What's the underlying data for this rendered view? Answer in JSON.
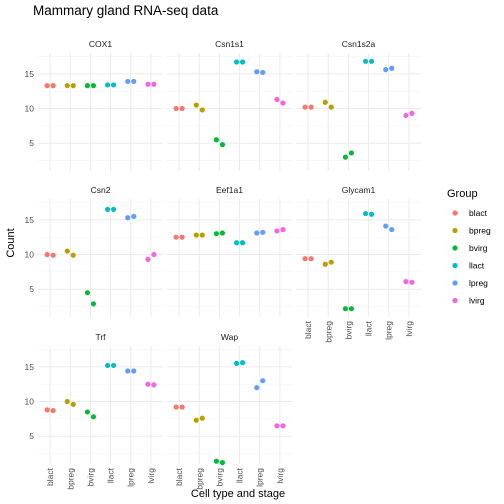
{
  "chart_data": {
    "type": "scatter",
    "title": "Mammary gland RNA-seq data",
    "xlabel": "Cell type and stage",
    "ylabel": "Count",
    "categories": [
      "blact",
      "bpreg",
      "bvirg",
      "llact",
      "lpreg",
      "lvirg"
    ],
    "ylim": [
      1,
      18
    ],
    "yticks": [
      5,
      10,
      15
    ],
    "grid": true,
    "legend_position": "right",
    "legend": {
      "title": "Group",
      "entries": [
        {
          "name": "blact",
          "color": "#F8766D"
        },
        {
          "name": "bpreg",
          "color": "#B79F00"
        },
        {
          "name": "bvirg",
          "color": "#00BA38"
        },
        {
          "name": "llact",
          "color": "#00BFC4"
        },
        {
          "name": "lpreg",
          "color": "#619CFF"
        },
        {
          "name": "lvirg",
          "color": "#F564E3"
        }
      ]
    },
    "panels": [
      {
        "name": "COX1",
        "points": [
          {
            "group": "blact",
            "values": [
              13.3,
              13.3
            ]
          },
          {
            "group": "bpreg",
            "values": [
              13.3,
              13.3
            ]
          },
          {
            "group": "bvirg",
            "values": [
              13.3,
              13.3
            ]
          },
          {
            "group": "llact",
            "values": [
              13.4,
              13.4
            ]
          },
          {
            "group": "lpreg",
            "values": [
              13.9,
              13.9
            ]
          },
          {
            "group": "lvirg",
            "values": [
              13.5,
              13.5
            ]
          }
        ]
      },
      {
        "name": "Csn1s1",
        "points": [
          {
            "group": "blact",
            "values": [
              10.0,
              10.0
            ]
          },
          {
            "group": "bpreg",
            "values": [
              10.5,
              9.8
            ]
          },
          {
            "group": "bvirg",
            "values": [
              5.5,
              4.8
            ]
          },
          {
            "group": "llact",
            "values": [
              16.7,
              16.7
            ]
          },
          {
            "group": "lpreg",
            "values": [
              15.3,
              15.2
            ]
          },
          {
            "group": "lvirg",
            "values": [
              11.3,
              10.8
            ]
          }
        ]
      },
      {
        "name": "Csn1s2a",
        "points": [
          {
            "group": "blact",
            "values": [
              10.2,
              10.2
            ]
          },
          {
            "group": "bpreg",
            "values": [
              10.9,
              10.2
            ]
          },
          {
            "group": "bvirg",
            "values": [
              3.0,
              3.6
            ]
          },
          {
            "group": "llact",
            "values": [
              16.8,
              16.8
            ]
          },
          {
            "group": "lpreg",
            "values": [
              15.6,
              15.8
            ]
          },
          {
            "group": "lvirg",
            "values": [
              9.0,
              9.3
            ]
          }
        ]
      },
      {
        "name": "Csn2",
        "points": [
          {
            "group": "blact",
            "values": [
              10.0,
              9.9
            ]
          },
          {
            "group": "bpreg",
            "values": [
              10.5,
              9.9
            ]
          },
          {
            "group": "bvirg",
            "values": [
              4.5,
              2.9
            ]
          },
          {
            "group": "llact",
            "values": [
              16.5,
              16.5
            ]
          },
          {
            "group": "lpreg",
            "values": [
              15.3,
              15.5
            ]
          },
          {
            "group": "lvirg",
            "values": [
              9.3,
              10.0
            ]
          }
        ]
      },
      {
        "name": "Eef1a1",
        "points": [
          {
            "group": "blact",
            "values": [
              12.5,
              12.5
            ]
          },
          {
            "group": "bpreg",
            "values": [
              12.8,
              12.8
            ]
          },
          {
            "group": "bvirg",
            "values": [
              13.0,
              13.1
            ]
          },
          {
            "group": "llact",
            "values": [
              11.7,
              11.7
            ]
          },
          {
            "group": "lpreg",
            "values": [
              13.1,
              13.2
            ]
          },
          {
            "group": "lvirg",
            "values": [
              13.4,
              13.6
            ]
          }
        ]
      },
      {
        "name": "Glycam1",
        "points": [
          {
            "group": "blact",
            "values": [
              9.4,
              9.4
            ]
          },
          {
            "group": "bpreg",
            "values": [
              8.6,
              8.9
            ]
          },
          {
            "group": "bvirg",
            "values": [
              2.2,
              2.2
            ]
          },
          {
            "group": "llact",
            "values": [
              15.9,
              15.8
            ]
          },
          {
            "group": "lpreg",
            "values": [
              14.1,
              13.6
            ]
          },
          {
            "group": "lvirg",
            "values": [
              6.1,
              6.0
            ]
          }
        ]
      },
      {
        "name": "Trf",
        "points": [
          {
            "group": "blact",
            "values": [
              8.8,
              8.7
            ]
          },
          {
            "group": "bpreg",
            "values": [
              10.0,
              9.6
            ]
          },
          {
            "group": "bvirg",
            "values": [
              8.5,
              7.8
            ]
          },
          {
            "group": "llact",
            "values": [
              15.2,
              15.2
            ]
          },
          {
            "group": "lpreg",
            "values": [
              14.4,
              14.4
            ]
          },
          {
            "group": "lvirg",
            "values": [
              12.5,
              12.4
            ]
          }
        ]
      },
      {
        "name": "Wap",
        "points": [
          {
            "group": "blact",
            "values": [
              9.2,
              9.2
            ]
          },
          {
            "group": "bpreg",
            "values": [
              7.3,
              7.6
            ]
          },
          {
            "group": "bvirg",
            "values": [
              1.4,
              1.2
            ]
          },
          {
            "group": "llact",
            "values": [
              15.5,
              15.6
            ]
          },
          {
            "group": "lpreg",
            "values": [
              12.0,
              13.0
            ]
          },
          {
            "group": "lvirg",
            "values": [
              6.5,
              6.5
            ]
          }
        ]
      }
    ]
  }
}
